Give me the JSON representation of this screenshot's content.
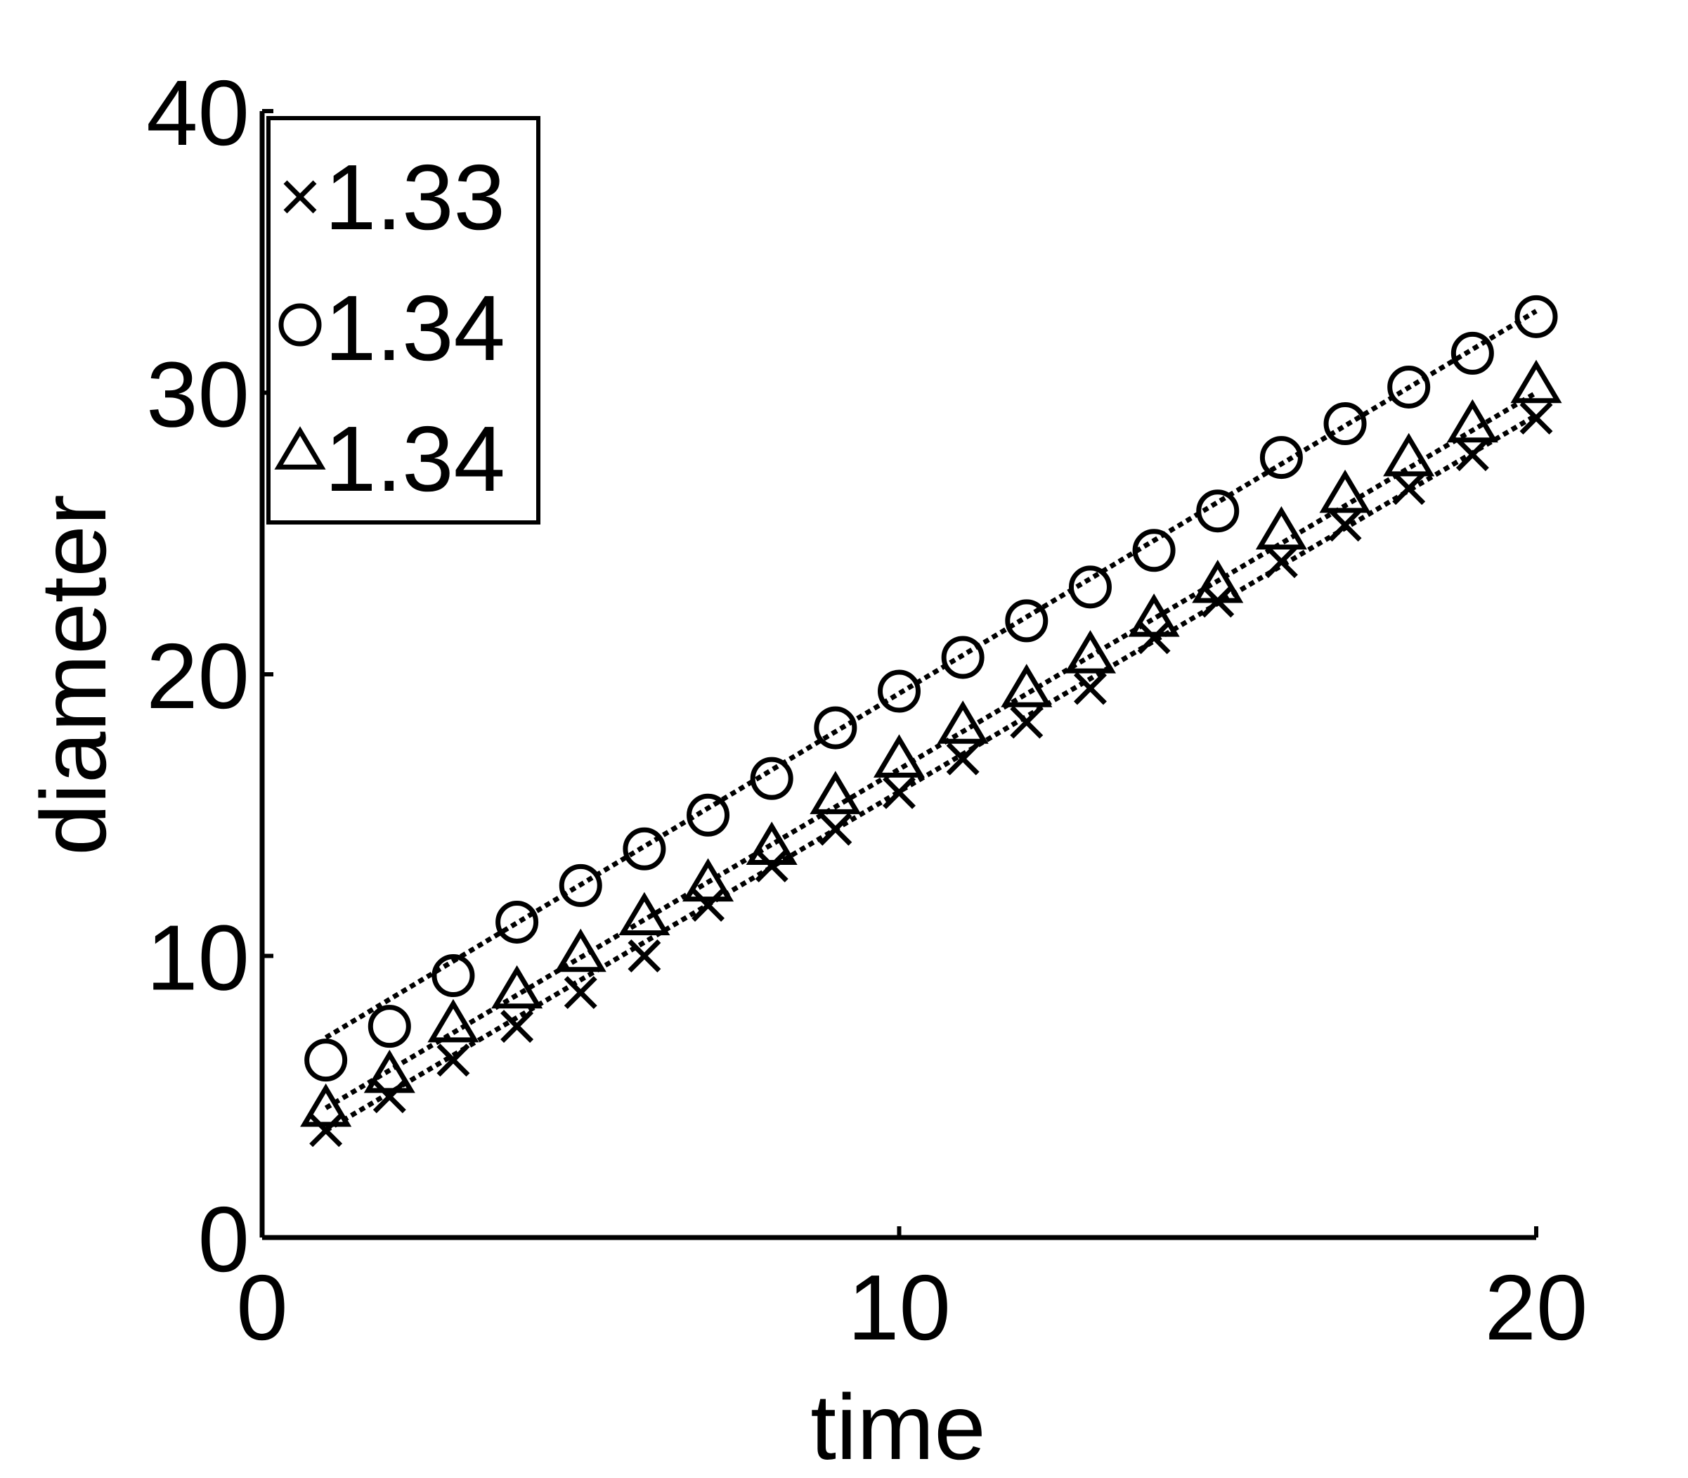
{
  "chart_data": {
    "type": "scatter",
    "title": "",
    "xlabel": "time",
    "ylabel": "diameter",
    "xlim": [
      0,
      20
    ],
    "ylim": [
      0,
      40
    ],
    "xticks": [
      0,
      10,
      20
    ],
    "yticks": [
      0,
      10,
      20,
      30,
      40
    ],
    "x_tick_labels": [
      "0",
      "10",
      "20"
    ],
    "y_tick_labels": [
      "0",
      "10",
      "20",
      "30",
      "40"
    ],
    "grid": false,
    "legend_position": "top-left",
    "color": "#000000",
    "series": [
      {
        "name": "1.33",
        "marker": "x",
        "x": [
          1,
          2,
          3,
          4,
          5,
          6,
          7,
          8,
          9,
          10,
          11,
          12,
          13,
          14,
          15,
          16,
          17,
          18,
          19,
          20
        ],
        "y": [
          3.8,
          5.0,
          6.3,
          7.5,
          8.7,
          10.0,
          11.8,
          13.2,
          14.5,
          15.8,
          17.0,
          18.3,
          19.5,
          21.3,
          22.6,
          24.0,
          25.3,
          26.6,
          27.8,
          29.1
        ],
        "fit": [
          3.8,
          29.2
        ]
      },
      {
        "name": "1.34",
        "marker": "circle",
        "x": [
          1,
          2,
          3,
          4,
          5,
          6,
          7,
          8,
          9,
          10,
          11,
          12,
          13,
          14,
          15,
          16,
          17,
          18,
          19,
          20
        ],
        "y": [
          6.3,
          7.5,
          9.3,
          11.2,
          12.5,
          13.8,
          15.0,
          16.3,
          18.1,
          19.4,
          20.6,
          21.9,
          23.1,
          24.4,
          25.8,
          27.7,
          28.9,
          30.2,
          31.4,
          32.7
        ],
        "fit": [
          7.1,
          32.9
        ]
      },
      {
        "name": "1.34",
        "marker": "triangle",
        "x": [
          1,
          2,
          3,
          4,
          5,
          6,
          7,
          8,
          9,
          10,
          11,
          12,
          13,
          14,
          15,
          16,
          17,
          18,
          19,
          20
        ],
        "y": [
          4.5,
          5.7,
          7.5,
          8.7,
          10.0,
          11.3,
          12.5,
          13.8,
          15.6,
          16.9,
          18.1,
          19.4,
          20.6,
          21.9,
          23.1,
          25.0,
          26.3,
          27.6,
          28.8,
          30.2
        ],
        "fit": [
          4.6,
          30.0
        ]
      }
    ]
  }
}
